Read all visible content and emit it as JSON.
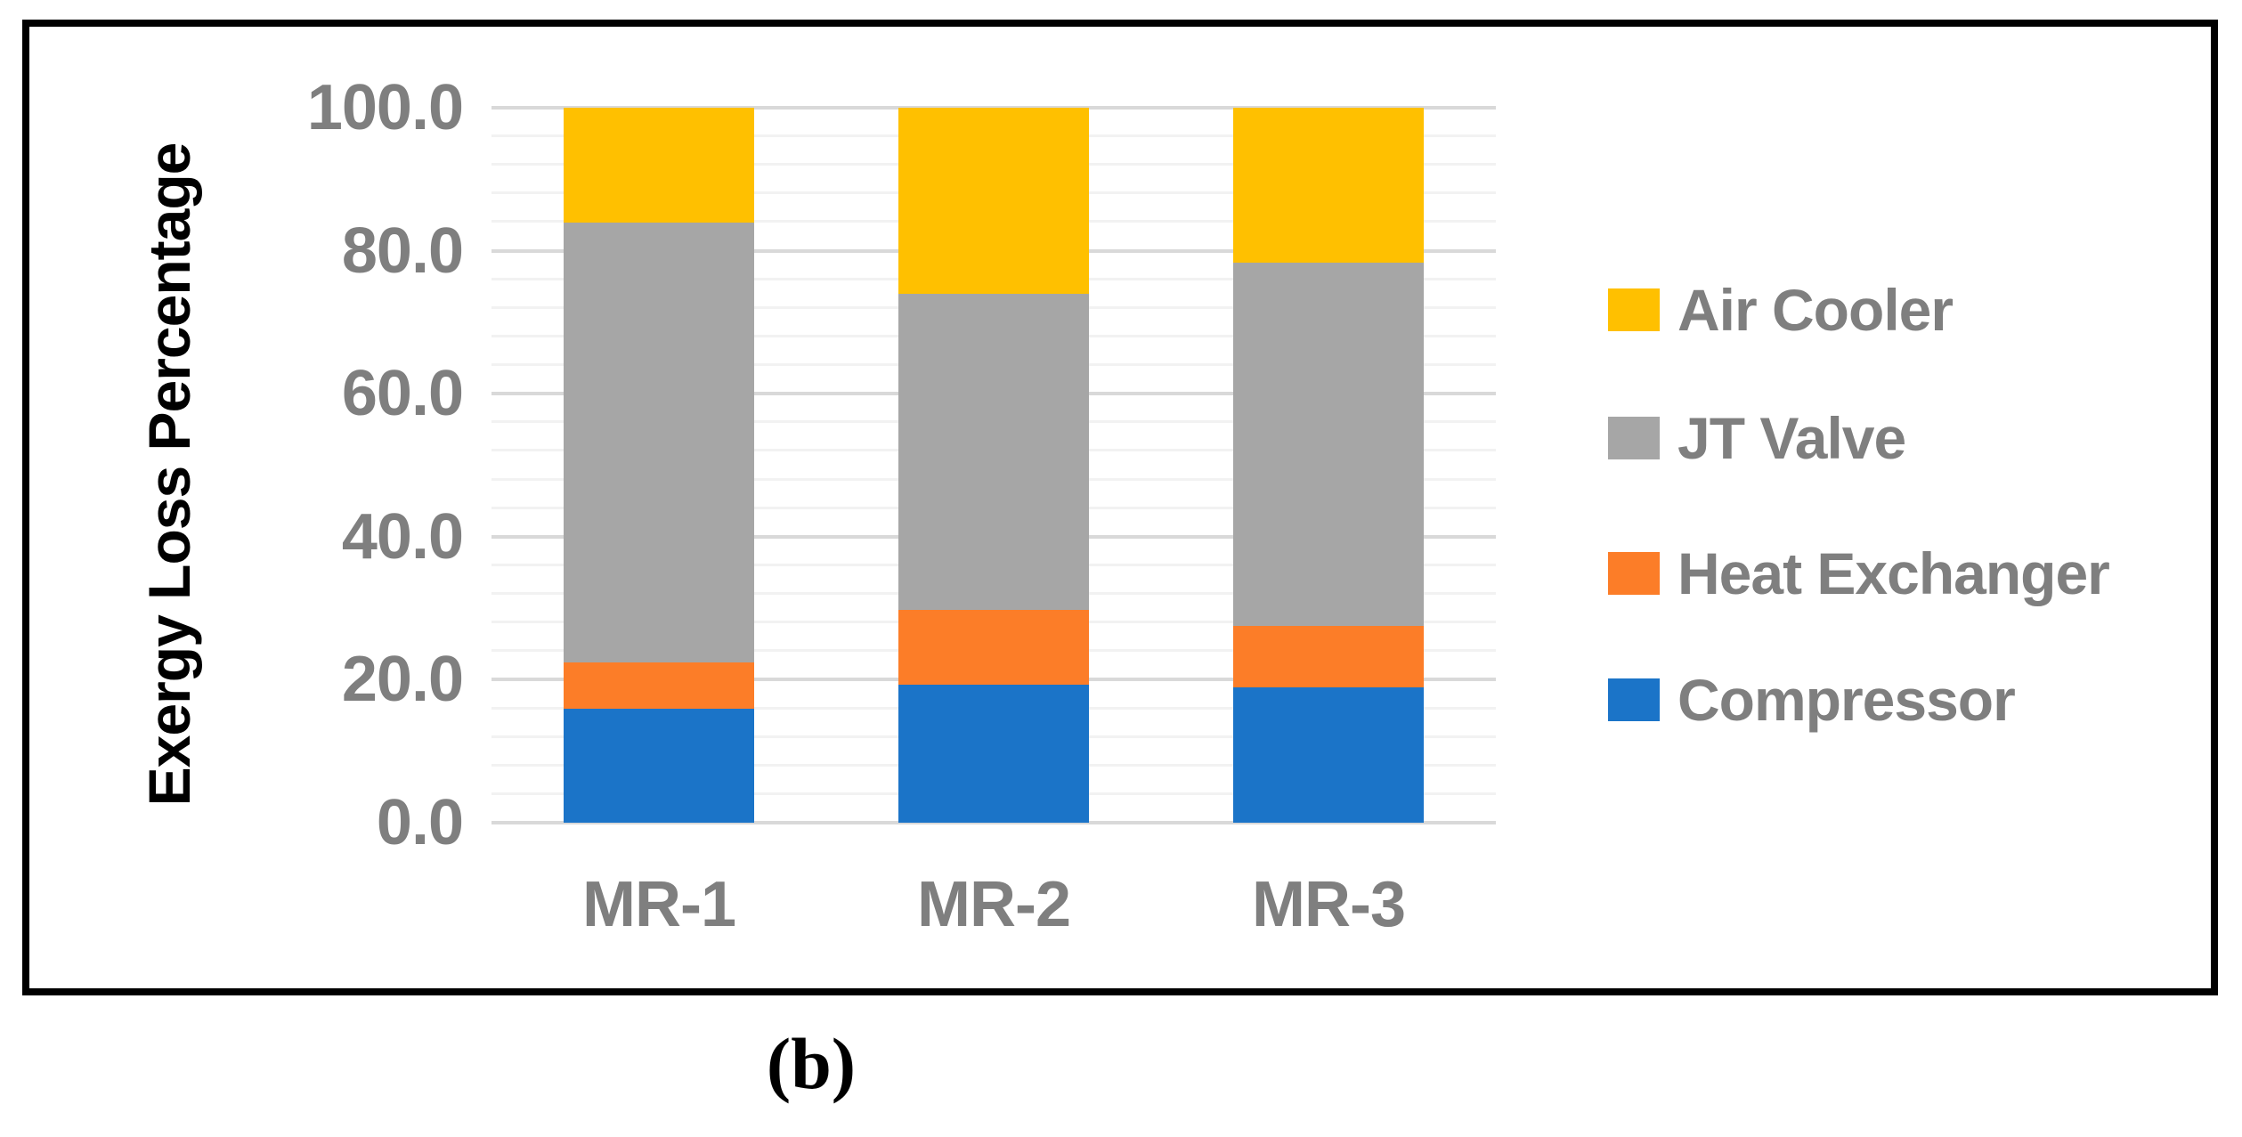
{
  "figure": {
    "caption": "(b)"
  },
  "chart_data": {
    "type": "bar",
    "stacked": true,
    "title": "",
    "categories": [
      "MR-1",
      "MR-2",
      "MR-3"
    ],
    "series": [
      {
        "name": "Compressor",
        "color": "#1B74C8",
        "values": [
          16.0,
          19.3,
          18.9
        ]
      },
      {
        "name": "Heat Exchanger",
        "color": "#FC7D28",
        "values": [
          6.4,
          10.5,
          8.6
        ]
      },
      {
        "name": "JT Valve",
        "color": "#A6A6A6",
        "values": [
          61.5,
          44.2,
          50.8
        ]
      },
      {
        "name": "Air Cooler",
        "color": "#FFC000",
        "values": [
          16.1,
          26.0,
          21.7
        ]
      }
    ],
    "xlabel": "",
    "ylabel": "Exergy Loss Percentage",
    "ylim": [
      0,
      100
    ],
    "ytick_values": [
      0,
      20,
      40,
      60,
      80,
      100
    ],
    "ytick_labels": [
      "0.0",
      "20.0",
      "40.0",
      "60.0",
      "80.0",
      "100.0"
    ],
    "minor_unit": 4,
    "grid": "major+minor",
    "legend_position": "right",
    "legend_order": [
      "Air Cooler",
      "JT Valve",
      "Heat Exchanger",
      "Compressor"
    ],
    "colors": {
      "major_grid": "#D9D9D9",
      "minor_grid": "#F2F2F2",
      "axis_text": "#7F7F7F",
      "frame": "#000000",
      "background": "#FFFFFF"
    }
  }
}
